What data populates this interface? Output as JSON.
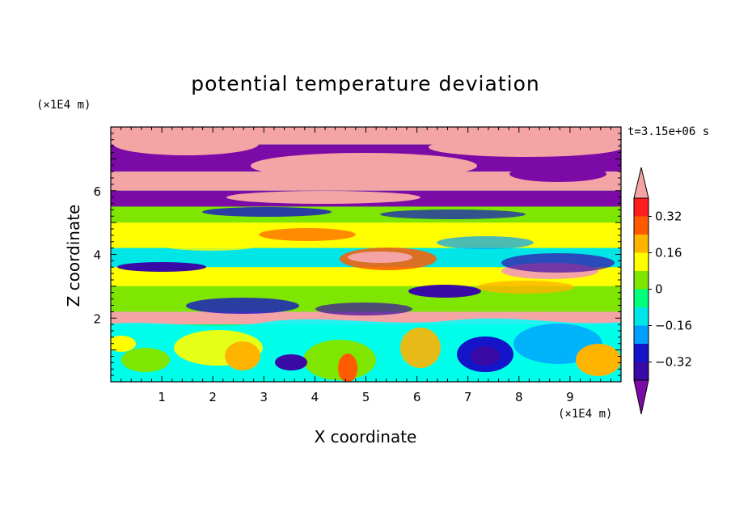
{
  "chart_data": {
    "type": "heatmap",
    "title": "potential temperature deviation",
    "xlabel": "X coordinate",
    "ylabel": "Z coordinate",
    "x_unit": "(×1E4 m)",
    "y_unit": "(×1E4 m)",
    "time_label": "t=3.15e+06 s",
    "xlim": [
      0,
      10
    ],
    "ylim": [
      0,
      8
    ],
    "x_ticks": [
      1,
      2,
      3,
      4,
      5,
      6,
      7,
      8,
      9
    ],
    "y_ticks": [
      2,
      4,
      6
    ],
    "colorbar": {
      "levels": [
        -0.4,
        -0.32,
        -0.24,
        -0.16,
        -0.08,
        0,
        0.08,
        0.16,
        0.24,
        0.32,
        0.4
      ],
      "tick_labels": [
        "0.32",
        "0.16",
        "0",
        "−0.16",
        "−0.32"
      ],
      "tick_values": [
        0.32,
        0.16,
        0,
        -0.16,
        -0.32
      ],
      "colors": [
        "#7b0aa6",
        "#3a0aa6",
        "#1414c8",
        "#00a0ff",
        "#00e6e6",
        "#00ff7a",
        "#7ee600",
        "#ffff00",
        "#ffb400",
        "#ff5a00",
        "#ff1e1e",
        "#f4a4a4"
      ],
      "extend": "both"
    },
    "field_bands": [
      {
        "z": [
          7.45,
          8.0
        ],
        "value": 0.45
      },
      {
        "z": [
          6.6,
          7.45
        ],
        "value": -0.45
      },
      {
        "z": [
          6.0,
          6.6
        ],
        "value": 0.45
      },
      {
        "z": [
          5.5,
          6.0
        ],
        "value": -0.45
      },
      {
        "z": [
          5.0,
          5.5
        ],
        "value": 0.05
      },
      {
        "z": [
          4.2,
          5.0
        ],
        "value": 0.1
      },
      {
        "z": [
          3.6,
          4.2
        ],
        "value": -0.1
      },
      {
        "z": [
          3.0,
          3.6
        ],
        "value": 0.08
      },
      {
        "z": [
          2.2,
          3.0
        ],
        "value": 0.0
      },
      {
        "z": [
          1.8,
          2.2
        ],
        "value": 0.45
      },
      {
        "z": [
          0.0,
          1.8
        ],
        "value": -0.05
      }
    ]
  }
}
